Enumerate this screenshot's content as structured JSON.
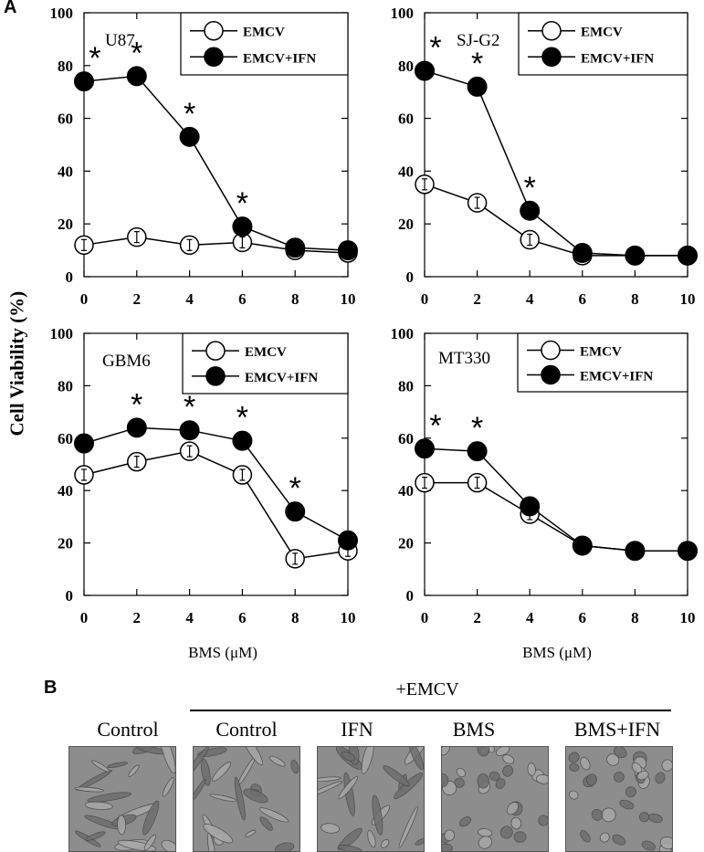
{
  "figure": {
    "panel_a_letter": "A",
    "panel_b_letter": "B",
    "y_axis_label": "Cell Viability (%)",
    "x_axis_label": "BMS (μM)",
    "marker": "*",
    "legend": {
      "open": "EMCV",
      "filled": "EMCV+IFN"
    },
    "panel_b": {
      "group_header": "+EMCV",
      "images": [
        {
          "label": "Control",
          "grouped": false
        },
        {
          "label": "Control",
          "grouped": true
        },
        {
          "label": "IFN",
          "grouped": true
        },
        {
          "label": "BMS",
          "grouped": true
        },
        {
          "label": "BMS+IFN",
          "grouped": true
        }
      ]
    }
  },
  "chart_data": [
    {
      "type": "line",
      "title": "U87",
      "x": [
        0,
        2,
        4,
        6,
        8,
        10
      ],
      "xticks": [
        "0",
        "2",
        "4",
        "6",
        "8",
        "10"
      ],
      "yticks": [
        "0",
        "20",
        "40",
        "60",
        "80",
        "100"
      ],
      "ylim": [
        0,
        100
      ],
      "xlim": [
        0,
        10
      ],
      "legend_position": "top-right",
      "series": [
        {
          "name": "EMCV",
          "style": "open",
          "values": [
            12,
            15,
            12,
            13,
            10,
            9
          ]
        },
        {
          "name": "EMCV+IFN",
          "style": "filled",
          "values": [
            74,
            76,
            53,
            19,
            11,
            10
          ],
          "significant": [
            true,
            true,
            true,
            true,
            false,
            false
          ]
        }
      ]
    },
    {
      "type": "line",
      "title": "SJ-G2",
      "x": [
        0,
        2,
        4,
        6,
        8,
        10
      ],
      "xticks": [
        "0",
        "2",
        "4",
        "6",
        "8",
        "10"
      ],
      "yticks": [
        "0",
        "20",
        "40",
        "60",
        "80",
        "100"
      ],
      "ylim": [
        0,
        100
      ],
      "xlim": [
        0,
        10
      ],
      "legend_position": "top-right",
      "series": [
        {
          "name": "EMCV",
          "style": "open",
          "values": [
            35,
            28,
            14,
            8,
            8,
            8
          ]
        },
        {
          "name": "EMCV+IFN",
          "style": "filled",
          "values": [
            78,
            72,
            25,
            9,
            8,
            8
          ],
          "significant": [
            true,
            true,
            true,
            false,
            false,
            false
          ]
        }
      ]
    },
    {
      "type": "line",
      "title": "GBM6",
      "x": [
        0,
        2,
        4,
        6,
        8,
        10
      ],
      "xticks": [
        "0",
        "2",
        "4",
        "6",
        "8",
        "10"
      ],
      "yticks": [
        "0",
        "20",
        "40",
        "60",
        "80",
        "100"
      ],
      "ylim": [
        0,
        100
      ],
      "xlim": [
        0,
        10
      ],
      "legend_position": "top-right",
      "series": [
        {
          "name": "EMCV",
          "style": "open",
          "values": [
            46,
            51,
            55,
            46,
            14,
            17
          ]
        },
        {
          "name": "EMCV+IFN",
          "style": "filled",
          "values": [
            58,
            64,
            63,
            59,
            32,
            21
          ],
          "significant": [
            false,
            true,
            true,
            true,
            true,
            false
          ]
        }
      ]
    },
    {
      "type": "line",
      "title": "MT330",
      "x": [
        0,
        2,
        4,
        6,
        8,
        10
      ],
      "xticks": [
        "0",
        "2",
        "4",
        "6",
        "8",
        "10"
      ],
      "yticks": [
        "0",
        "20",
        "40",
        "60",
        "80",
        "100"
      ],
      "ylim": [
        0,
        100
      ],
      "xlim": [
        0,
        10
      ],
      "legend_position": "top-right",
      "series": [
        {
          "name": "EMCV",
          "style": "open",
          "values": [
            43,
            43,
            31,
            19,
            17,
            17
          ]
        },
        {
          "name": "EMCV+IFN",
          "style": "filled",
          "values": [
            56,
            55,
            34,
            19,
            17,
            17
          ],
          "significant": [
            true,
            true,
            false,
            false,
            false,
            false
          ]
        }
      ]
    }
  ]
}
